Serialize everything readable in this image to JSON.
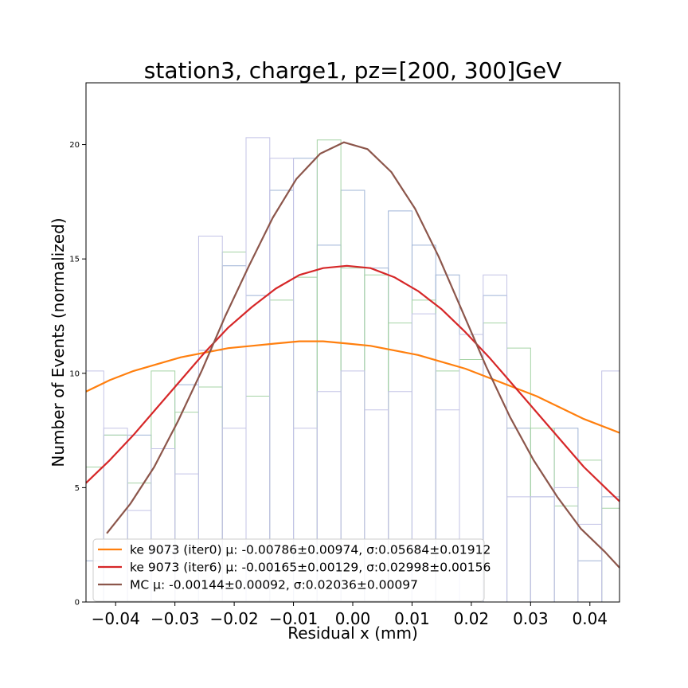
{
  "chart_data": {
    "type": "line",
    "title": "station3, charge1, pz=[200, 300]GeV",
    "xlabel": "Residual x (mm)",
    "ylabel": "Number of Events (normalized)",
    "xlim": [
      -0.045,
      0.045
    ],
    "ylim": [
      0,
      22.7
    ],
    "grid": false,
    "legend_position": "lower-left",
    "x_ticks": [
      -0.04,
      -0.03,
      -0.02,
      -0.01,
      0.0,
      0.01,
      0.02,
      0.03,
      0.04
    ],
    "x_tick_labels": [
      "−0.04",
      "−0.03",
      "−0.02",
      "−0.01",
      "0.00",
      "0.01",
      "0.02",
      "0.03",
      "0.04"
    ],
    "y_ticks": [
      0,
      5,
      10,
      15,
      20
    ],
    "y_tick_labels": [
      "0",
      "5",
      "10",
      "15",
      "20"
    ],
    "histograms": [
      {
        "color": "#9fb4d6",
        "bin_edges": [
          -0.046,
          -0.042,
          -0.038,
          -0.034,
          -0.03,
          -0.026,
          -0.022,
          -0.018,
          -0.014,
          -0.01,
          -0.006,
          -0.002,
          0.002,
          0.006,
          0.01,
          0.014,
          0.018,
          0.022,
          0.026,
          0.03,
          0.034,
          0.038,
          0.042,
          0.046
        ],
        "values": [
          1.8,
          7.3,
          7.3,
          2.2,
          9.5,
          11.0,
          14.7,
          13.4,
          18.0,
          19.4,
          15.6,
          18.0,
          14.6,
          17.1,
          15.6,
          14.3,
          11.7,
          13.4,
          7.6,
          4.6,
          7.6,
          1.8,
          4.6
        ]
      },
      {
        "color": "#a5d3a5",
        "bin_edges": [
          -0.046,
          -0.042,
          -0.038,
          -0.034,
          -0.03,
          -0.026,
          -0.022,
          -0.018,
          -0.014,
          -0.01,
          -0.006,
          -0.002,
          0.002,
          0.006,
          0.01,
          0.014,
          0.018,
          0.022,
          0.026,
          0.03,
          0.034,
          0.038,
          0.042,
          0.046
        ],
        "values": [
          5.9,
          7.3,
          5.2,
          10.1,
          8.3,
          9.4,
          15.3,
          9.0,
          13.2,
          14.2,
          20.2,
          14.6,
          14.3,
          12.2,
          13.2,
          10.1,
          10.6,
          12.2,
          11.1,
          7.6,
          4.2,
          6.2,
          4.1
        ]
      },
      {
        "color": "#c3c3e6",
        "bin_edges": [
          -0.046,
          -0.042,
          -0.038,
          -0.034,
          -0.03,
          -0.026,
          -0.022,
          -0.018,
          -0.014,
          -0.01,
          -0.006,
          -0.002,
          0.002,
          0.006,
          0.01,
          0.014,
          0.018,
          0.022,
          0.026,
          0.03,
          0.034,
          0.038,
          0.042,
          0.046
        ],
        "values": [
          10.1,
          7.6,
          4.0,
          6.7,
          5.6,
          16.0,
          7.6,
          20.3,
          19.4,
          7.6,
          9.2,
          10.1,
          8.4,
          9.2,
          12.6,
          8.4,
          11.7,
          14.3,
          4.6,
          4.6,
          5.0,
          3.4,
          10.1
        ]
      }
    ],
    "series": [
      {
        "name": "ke 9073 (iter0) μ: -0.00786±0.00974, σ:0.05684±0.01912",
        "color": "#ff7f0e",
        "x": [
          -0.045,
          -0.041,
          -0.037,
          -0.033,
          -0.029,
          -0.025,
          -0.021,
          -0.017,
          -0.013,
          -0.009,
          -0.005,
          -0.001,
          0.003,
          0.007,
          0.011,
          0.015,
          0.019,
          0.023,
          0.027,
          0.031,
          0.035,
          0.039,
          0.043,
          0.045
        ],
        "y": [
          9.2,
          9.7,
          10.1,
          10.4,
          10.7,
          10.9,
          11.1,
          11.2,
          11.3,
          11.4,
          11.4,
          11.3,
          11.2,
          11.0,
          10.8,
          10.5,
          10.2,
          9.8,
          9.4,
          9.0,
          8.5,
          8.0,
          7.6,
          7.4
        ]
      },
      {
        "name": "ke 9073 (iter6) μ: -0.00165±0.00129, σ:0.02998±0.00156",
        "color": "#d62728",
        "x": [
          -0.045,
          -0.041,
          -0.037,
          -0.033,
          -0.029,
          -0.025,
          -0.021,
          -0.017,
          -0.013,
          -0.009,
          -0.005,
          -0.001,
          0.003,
          0.007,
          0.011,
          0.015,
          0.019,
          0.023,
          0.027,
          0.031,
          0.035,
          0.039,
          0.043,
          0.045
        ],
        "y": [
          5.2,
          6.2,
          7.3,
          8.5,
          9.7,
          10.9,
          12.0,
          12.9,
          13.7,
          14.3,
          14.6,
          14.7,
          14.6,
          14.2,
          13.6,
          12.8,
          11.8,
          10.7,
          9.5,
          8.3,
          7.1,
          5.9,
          4.9,
          4.4
        ]
      },
      {
        "name": "MC μ: -0.00144±0.00092, σ:0.02036±0.00097",
        "color": "#8c564b",
        "x": [
          -0.0415,
          -0.0375,
          -0.0335,
          -0.0295,
          -0.0255,
          -0.0215,
          -0.0175,
          -0.0135,
          -0.0095,
          -0.0055,
          -0.0015,
          0.0025,
          0.0065,
          0.0105,
          0.0145,
          0.0185,
          0.0225,
          0.0265,
          0.0305,
          0.0345,
          0.0385,
          0.0425,
          0.045
        ],
        "y": [
          3.0,
          4.3,
          5.9,
          7.9,
          10.1,
          12.5,
          14.7,
          16.8,
          18.5,
          19.6,
          20.1,
          19.8,
          18.8,
          17.2,
          15.1,
          12.7,
          10.3,
          8.1,
          6.2,
          4.6,
          3.2,
          2.2,
          1.5
        ]
      }
    ]
  }
}
